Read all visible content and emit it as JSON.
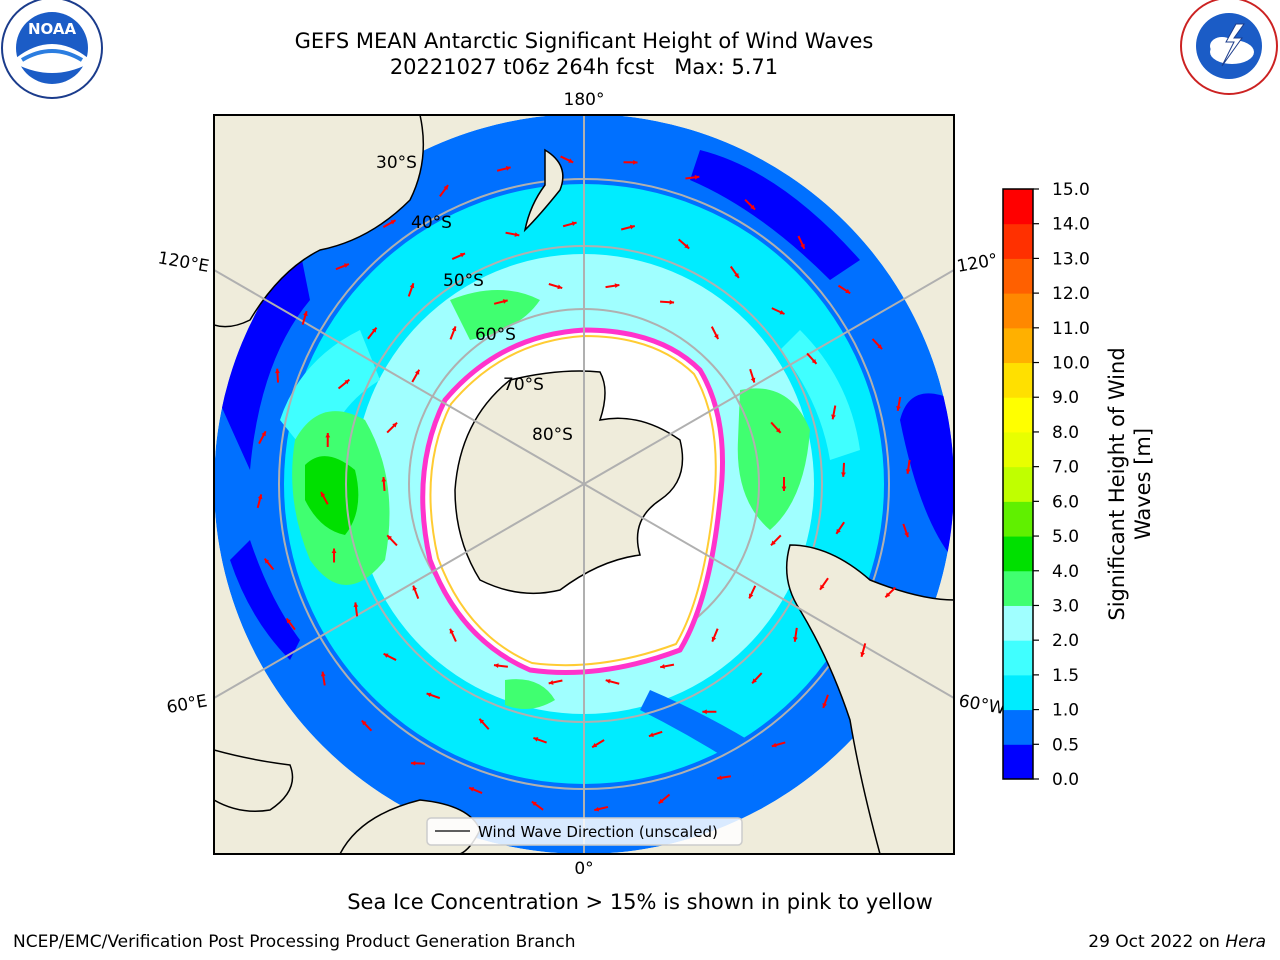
{
  "title": {
    "line1": "GEFS MEAN Antarctic Significant Height of Wind Waves",
    "line2": "20221027 t06z 264h fcst   Max: 5.71"
  },
  "logos": {
    "left": "NOAA",
    "left_ring": "NATIONAL OCEANIC AND ATMOSPHERIC ADMINISTRATION · U.S. DEPARTMENT OF COMMERCE",
    "right_ring": "NATIONAL WEATHER SERVICE"
  },
  "map": {
    "projection": "south-polar-stereographic",
    "longitude_labels": {
      "top": "180°",
      "bottom": "0°",
      "left_upper": "120°E",
      "left_lower": "60°E",
      "right_upper": "120°",
      "right_lower": "60°W"
    },
    "latitude_labels": [
      "30°S",
      "40°S",
      "50°S",
      "60°S",
      "70°S",
      "80°S"
    ],
    "legend_label": "Wind Wave Direction (unscaled)",
    "colors": {
      "land": "#efecdb",
      "sea_ice_interior": "#ffffff",
      "sea_ice_edge_pink": "#ff33cc",
      "sea_ice_edge_yellow": "#ffcc33",
      "arrow": "#ff0000",
      "gridline": "#b0b0b0"
    }
  },
  "colorbar": {
    "label_line1": "Significant Height of Wind",
    "label_line2": "Waves [m]",
    "ticks": [
      "0.0",
      "0.5",
      "1.0",
      "1.5",
      "2.0",
      "3.0",
      "4.0",
      "5.0",
      "6.0",
      "7.0",
      "8.0",
      "9.0",
      "10.0",
      "11.0",
      "12.0",
      "13.0",
      "14.0",
      "15.0"
    ],
    "colors": [
      "#0000ff",
      "#0070ff",
      "#00ecff",
      "#40ffff",
      "#a0ffff",
      "#40ff70",
      "#00e000",
      "#60f000",
      "#c0ff00",
      "#e8ff00",
      "#ffff00",
      "#ffe000",
      "#ffb000",
      "#ff8800",
      "#ff6000",
      "#ff3000",
      "#ff0000"
    ]
  },
  "caption": "Sea Ice Concentration > 15% is shown in pink to yellow",
  "footer": {
    "left": "NCEP/EMC/Verification Post Processing Product Generation Branch",
    "right_prefix": "29 Oct 2022 on ",
    "right_host": "Hera"
  }
}
